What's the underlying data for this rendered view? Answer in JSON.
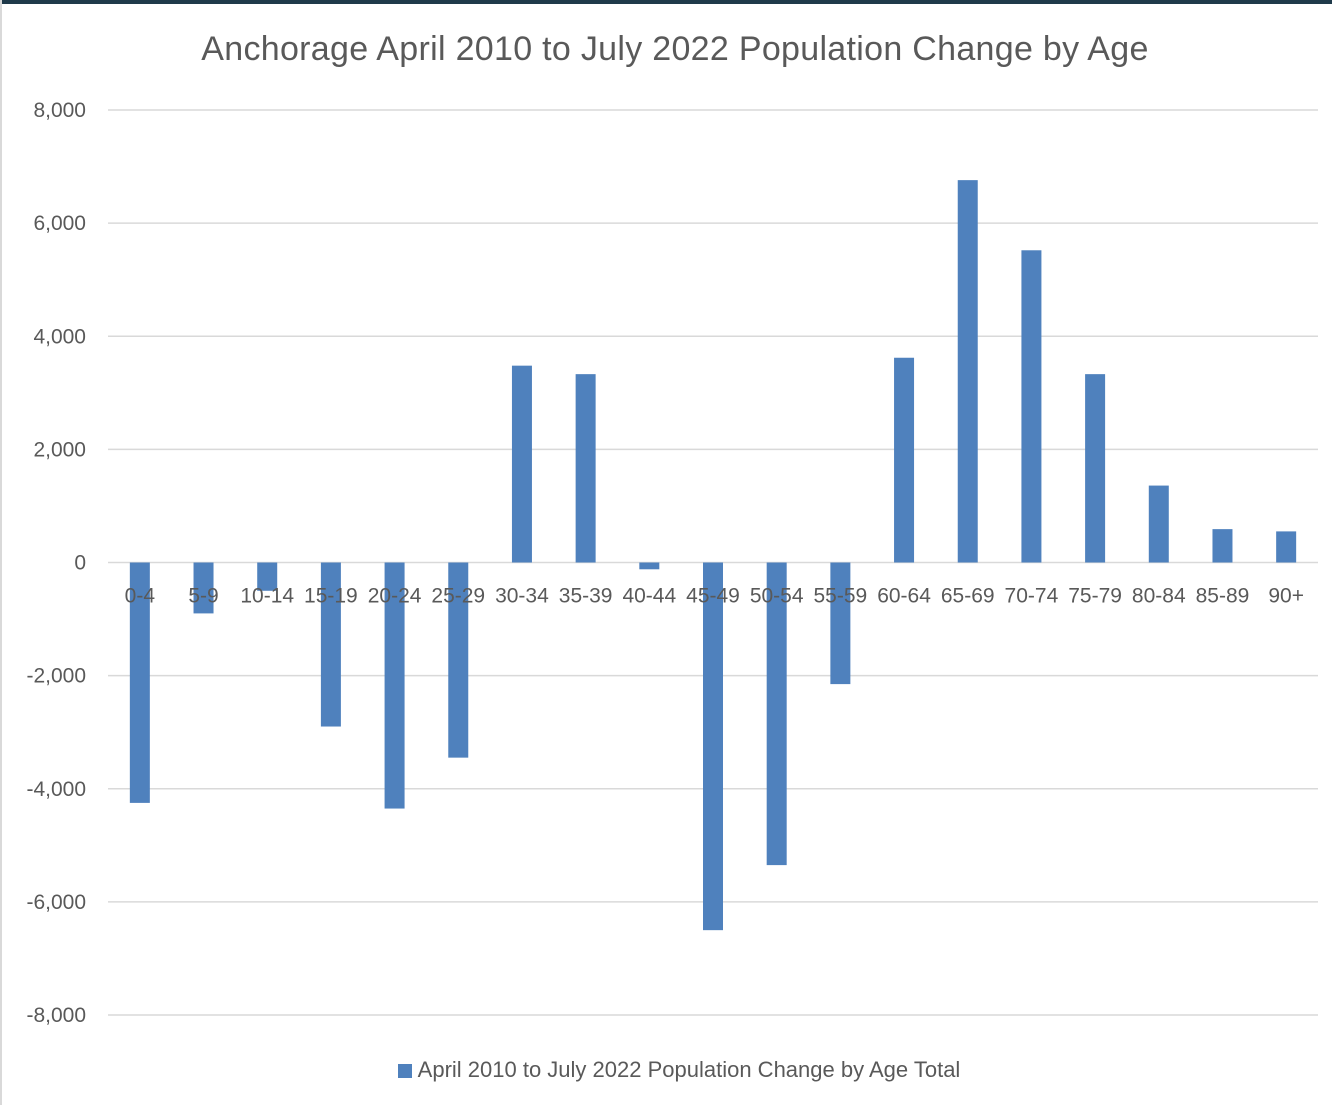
{
  "chart_data": {
    "type": "bar",
    "title": "Anchorage April 2010 to July 2022 Population Change by Age",
    "categories": [
      "0-4",
      "5-9",
      "10-14",
      "15-19",
      "20-24",
      "25-29",
      "30-34",
      "35-39",
      "40-44",
      "45-49",
      "50-54",
      "55-59",
      "60-64",
      "65-69",
      "70-74",
      "75-79",
      "80-84",
      "85-89",
      "90+"
    ],
    "series": [
      {
        "name": "April 2010 to July 2022 Population Change by Age Total",
        "values": [
          -4250,
          -900,
          -500,
          -2900,
          -4350,
          -3450,
          3480,
          3330,
          -120,
          -6500,
          -5350,
          -2150,
          3620,
          6760,
          5520,
          3330,
          1360,
          590,
          550
        ],
        "color": "#4f81bd"
      }
    ],
    "ylim": [
      -8000,
      8000
    ],
    "yticks": [
      8000,
      6000,
      4000,
      2000,
      0,
      -2000,
      -4000,
      -6000,
      -8000
    ],
    "ytick_labels": [
      "8,000",
      "6,000",
      "4,000",
      "2,000",
      "0",
      "-2,000",
      "-4,000",
      "-6,000",
      "-8,000"
    ],
    "grid": true,
    "legend_position": "bottom",
    "xlabel": "",
    "ylabel": ""
  },
  "legend": {
    "label": "April 2010 to July 2022 Population Change by Age Total"
  }
}
